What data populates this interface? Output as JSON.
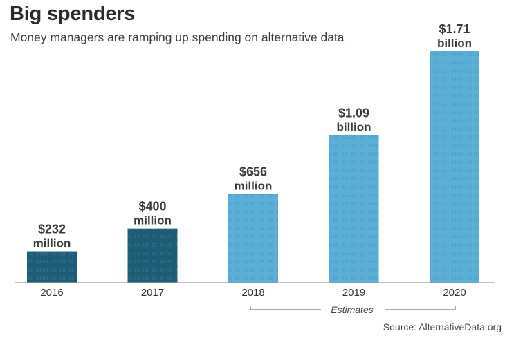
{
  "title": "Big spenders",
  "subtitle": "Money managers are ramping up spending on alternative data",
  "source": "Source: AlternativeData.org",
  "estimates_label": "Estimates",
  "colors": {
    "actual": "#1d5d78",
    "estimate": "#5aaed8",
    "label": "#3a3a3a"
  },
  "chart_data": {
    "type": "bar",
    "title": "Big spenders",
    "subtitle": "Money managers are ramping up spending on alternative data",
    "categories": [
      "2016",
      "2017",
      "2018",
      "2019",
      "2020"
    ],
    "values": [
      232,
      400,
      656,
      1090,
      1710
    ],
    "unit": "million USD",
    "value_labels": [
      [
        "$232",
        "million"
      ],
      [
        "$400",
        "million"
      ],
      [
        "$656",
        "million"
      ],
      [
        "$1.09",
        "billion"
      ],
      [
        "$1.71",
        "billion"
      ]
    ],
    "estimated": [
      false,
      false,
      true,
      true,
      true
    ],
    "ylim": [
      0,
      1710
    ],
    "grid": false,
    "xlabel": "",
    "ylabel": ""
  }
}
